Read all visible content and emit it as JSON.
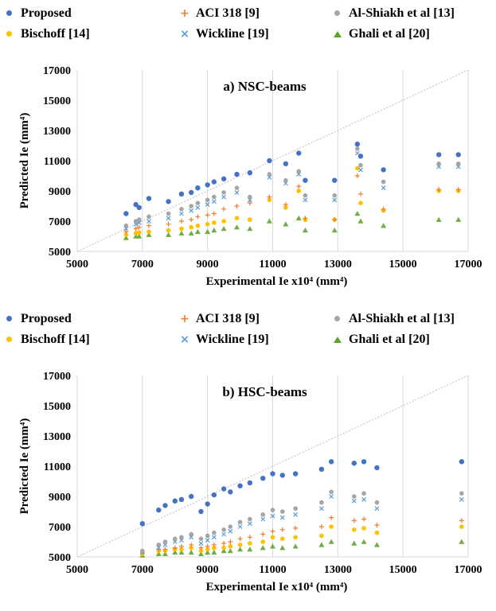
{
  "legend": [
    {
      "name": "Proposed",
      "color": "#4472c4",
      "marker": "dot"
    },
    {
      "name": "ACI 318 [9]",
      "color": "#ed7d31",
      "marker": "plus"
    },
    {
      "name": "Al-Shiakh et al [13]",
      "color": "#a5a5a5",
      "marker": "dot"
    },
    {
      "name": "Bischoff [14]",
      "color": "#ffc000",
      "marker": "dot"
    },
    {
      "name": "Wickline [19]",
      "color": "#5b9bd5",
      "marker": "x"
    },
    {
      "name": "Ghali et al [20]",
      "color": "#70ad47",
      "marker": "triangle"
    }
  ],
  "chart_data": [
    {
      "type": "scatter",
      "title": "a) NSC-beams",
      "xlabel": "Experimental Ie x10⁴ (mm⁴)",
      "ylabel": "Predicted Ie (mm⁴)",
      "xlim": [
        5000,
        17000
      ],
      "ylim": [
        5000,
        17000
      ],
      "xticks": [
        "5000",
        "7000",
        "9000",
        "11000",
        "13000",
        "15000",
        "17000"
      ],
      "yticks": [
        "5000",
        "7000",
        "9000",
        "11000",
        "13000",
        "15000",
        "17000"
      ],
      "grid": "vertical",
      "reference_line": "y = x",
      "x": [
        6500,
        6800,
        6900,
        7200,
        7800,
        8200,
        8500,
        8700,
        9000,
        9200,
        9500,
        9900,
        10300,
        10900,
        11400,
        11800,
        12000,
        12900,
        13600,
        13700,
        14400,
        16100,
        16700
      ],
      "series": [
        {
          "name": "Proposed",
          "values": [
            7500,
            8100,
            7900,
            8500,
            8300,
            8800,
            8900,
            9200,
            9400,
            9600,
            9800,
            10100,
            10200,
            11000,
            10800,
            11500,
            9700,
            9700,
            12100,
            11300,
            10400,
            11400,
            11400
          ]
        },
        {
          "name": "ACI 318 [9]",
          "values": [
            6300,
            6500,
            6600,
            6700,
            6800,
            7000,
            7100,
            7300,
            7400,
            7500,
            7800,
            8000,
            8200,
            8600,
            8100,
            9300,
            7200,
            7100,
            10000,
            8800,
            7800,
            9100,
            9100
          ]
        },
        {
          "name": "Al-Shiakh et al [13]",
          "values": [
            6700,
            7000,
            7100,
            7300,
            7500,
            7800,
            8000,
            8200,
            8400,
            8600,
            8900,
            9200,
            8600,
            10100,
            9700,
            10300,
            8700,
            8700,
            11800,
            10700,
            9600,
            10800,
            10800
          ]
        },
        {
          "name": "Bischoff [14]",
          "values": [
            6100,
            6200,
            6250,
            6300,
            6400,
            6500,
            6600,
            6700,
            6800,
            6900,
            7000,
            7200,
            7100,
            8400,
            7900,
            9000,
            7100,
            7100,
            10500,
            8200,
            7700,
            9000,
            9000
          ]
        },
        {
          "name": "Wickline [19]",
          "values": [
            6500,
            6800,
            6900,
            7000,
            7200,
            7500,
            7700,
            7900,
            8100,
            8300,
            8600,
            8900,
            8400,
            9900,
            9500,
            10100,
            8400,
            8400,
            11500,
            10400,
            9200,
            10600,
            10600
          ]
        },
        {
          "name": "Ghali et al [20]",
          "values": [
            5900,
            6000,
            6000,
            6100,
            6100,
            6200,
            6200,
            6300,
            6300,
            6400,
            6500,
            6600,
            6500,
            7000,
            6800,
            7200,
            6400,
            6400,
            7500,
            7000,
            6700,
            7100,
            7100
          ]
        }
      ]
    },
    {
      "type": "scatter",
      "title": "b) HSC-beams",
      "xlabel": "Experimental Ie x10⁴ (mm⁴)",
      "ylabel": "Predicted Ie (mm⁴)",
      "xlim": [
        5000,
        17000
      ],
      "ylim": [
        5000,
        17000
      ],
      "xticks": [
        "5000",
        "7000",
        "9000",
        "11000",
        "13000",
        "15000",
        "17000"
      ],
      "yticks": [
        "5000",
        "7000",
        "9000",
        "11000",
        "13000",
        "15000",
        "17000"
      ],
      "grid": "vertical",
      "reference_line": "y = x",
      "x": [
        7000,
        7500,
        7700,
        8000,
        8200,
        8500,
        8800,
        9000,
        9200,
        9500,
        9700,
        10000,
        10300,
        10700,
        11000,
        11300,
        11700,
        12500,
        12800,
        13500,
        13800,
        14200,
        16800
      ],
      "series": [
        {
          "name": "Proposed",
          "values": [
            7200,
            8100,
            8400,
            8700,
            8800,
            9000,
            8000,
            8500,
            9100,
            9500,
            9300,
            9700,
            9900,
            10200,
            10500,
            10400,
            10500,
            10800,
            11300,
            11200,
            11300,
            10900,
            11300
          ]
        },
        {
          "name": "ACI 318 [9]",
          "values": [
            5300,
            5500,
            5500,
            5600,
            5700,
            5800,
            5600,
            5700,
            5800,
            5900,
            6000,
            6200,
            6300,
            6500,
            6700,
            6800,
            6900,
            7000,
            7600,
            7400,
            7500,
            7100,
            7400
          ]
        },
        {
          "name": "Al-Shiakh et al [13]",
          "values": [
            5400,
            5800,
            6000,
            6200,
            6300,
            6500,
            6200,
            6400,
            6600,
            6800,
            7000,
            7300,
            7500,
            7800,
            8100,
            8000,
            8200,
            8600,
            9300,
            9000,
            9200,
            8600,
            9200
          ]
        },
        {
          "name": "Bischoff [14]",
          "values": [
            5200,
            5400,
            5400,
            5500,
            5500,
            5600,
            5400,
            5500,
            5600,
            5600,
            5700,
            5800,
            5900,
            6000,
            6300,
            6200,
            6300,
            6400,
            7000,
            6800,
            6900,
            6600,
            7000
          ]
        },
        {
          "name": "Wickline [19]",
          "values": [
            5300,
            5600,
            5800,
            6000,
            6100,
            6300,
            5900,
            6100,
            6300,
            6500,
            6700,
            7000,
            7200,
            7500,
            7700,
            7600,
            7800,
            8200,
            9000,
            8700,
            8800,
            8200,
            8800
          ]
        },
        {
          "name": "Ghali et al [20]",
          "values": [
            5100,
            5200,
            5200,
            5300,
            5300,
            5300,
            5200,
            5300,
            5300,
            5400,
            5400,
            5500,
            5500,
            5600,
            5700,
            5600,
            5700,
            5800,
            6000,
            5900,
            6000,
            5800,
            6000
          ]
        }
      ]
    }
  ]
}
